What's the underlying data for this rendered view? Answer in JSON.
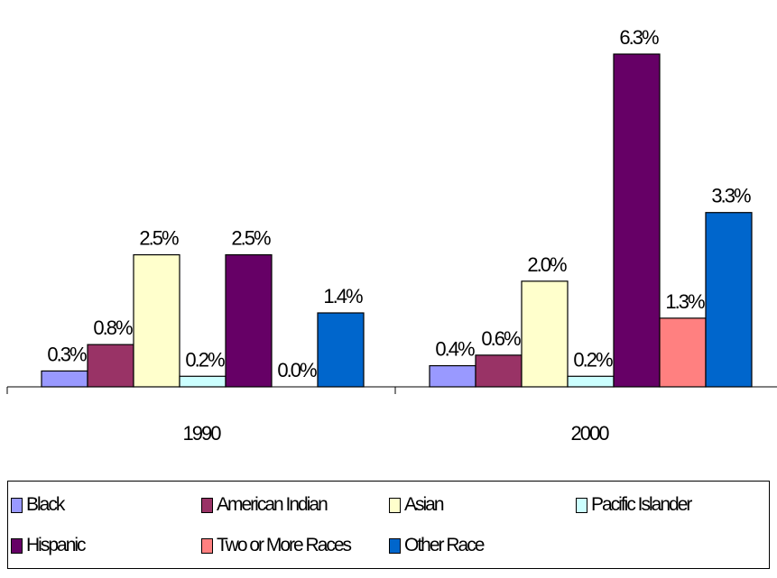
{
  "chart_data": {
    "type": "bar",
    "categories": [
      "1990",
      "2000"
    ],
    "series": [
      {
        "name": "Black",
        "color": "#9999ff",
        "values": [
          0.3,
          0.4
        ],
        "labels": [
          "0.3%",
          "0.4%"
        ]
      },
      {
        "name": "American Indian",
        "color": "#993366",
        "values": [
          0.8,
          0.6
        ],
        "labels": [
          "0.8%",
          "0.6%"
        ]
      },
      {
        "name": "Asian",
        "color": "#ffffcc",
        "values": [
          2.5,
          2.0
        ],
        "labels": [
          "2.5%",
          "2.0%"
        ]
      },
      {
        "name": "Pacific Islander",
        "color": "#ccffff",
        "values": [
          0.2,
          0.2
        ],
        "labels": [
          "0.2%",
          "0.2%"
        ]
      },
      {
        "name": "Hispanic",
        "color": "#660066",
        "values": [
          2.5,
          6.3
        ],
        "labels": [
          "2.5%",
          "6.3%"
        ]
      },
      {
        "name": "Two or More Races",
        "color": "#ff8080",
        "values": [
          0,
          1.3
        ],
        "labels": [
          "0.0%",
          "1.3%"
        ]
      },
      {
        "name": "Other Race",
        "color": "#0066cc",
        "values": [
          1.4,
          3.3
        ],
        "labels": [
          "1.4%",
          "3.3%"
        ]
      }
    ],
    "ylim": [
      0,
      6.3
    ],
    "grid": false,
    "legend_position": "bottom"
  }
}
